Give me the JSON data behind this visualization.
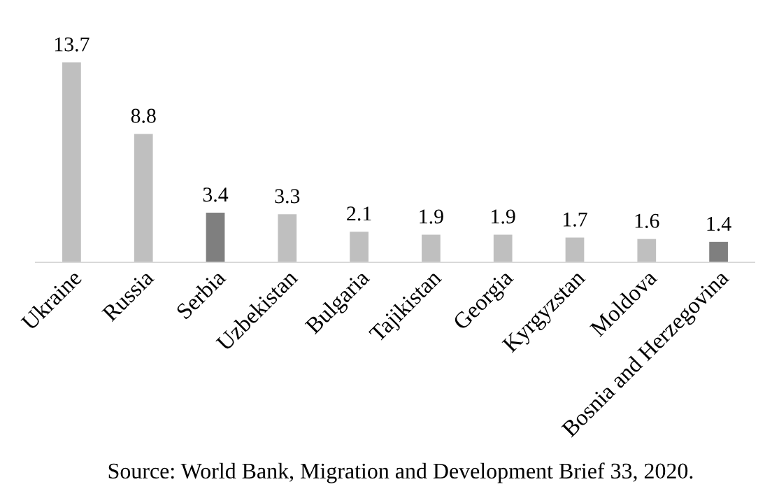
{
  "chart_data": {
    "type": "bar",
    "categories": [
      "Ukraine",
      "Russia",
      "Serbia",
      "Uzbekistan",
      "Bulgaria",
      "Tajikistan",
      "Georgia",
      "Kyrgyzstan",
      "Moldova",
      "Bosnia and Herzegovina"
    ],
    "values": [
      13.7,
      8.8,
      3.4,
      3.3,
      2.1,
      1.9,
      1.9,
      1.7,
      1.6,
      1.4
    ],
    "colors": [
      "#bfbfbf",
      "#bfbfbf",
      "#7f7f7f",
      "#bfbfbf",
      "#bfbfbf",
      "#bfbfbf",
      "#bfbfbf",
      "#bfbfbf",
      "#bfbfbf",
      "#7f7f7f"
    ],
    "data_labels": true,
    "tick_labels": "x",
    "annotations": [
      "Source: World Bank, Migration and Development Brief 33, 2020."
    ]
  }
}
